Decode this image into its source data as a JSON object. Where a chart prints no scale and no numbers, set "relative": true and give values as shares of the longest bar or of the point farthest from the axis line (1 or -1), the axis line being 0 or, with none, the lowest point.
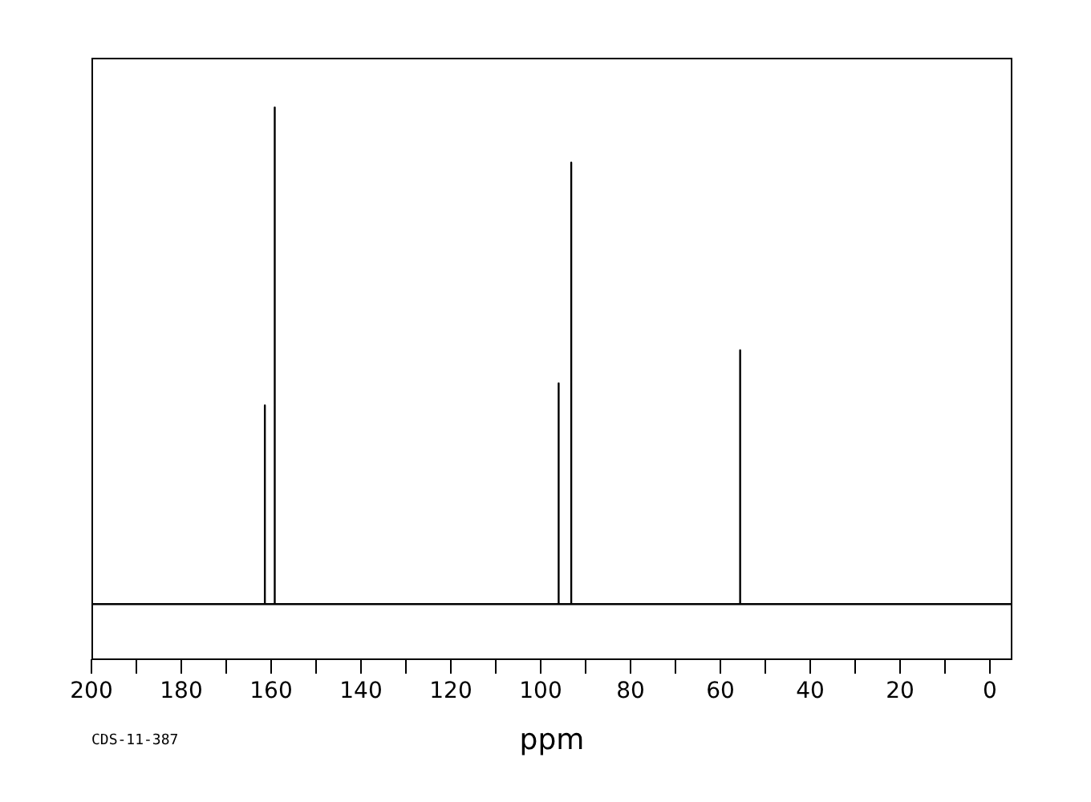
{
  "chart_data": {
    "type": "line",
    "xlabel": "ppm",
    "annotations": [
      "CDS-11-387"
    ],
    "relative": true,
    "grid": false,
    "legend": false,
    "marker": "none",
    "line_style": "solid",
    "xlim": [
      200,
      -5
    ],
    "xticks": [
      200,
      {
        "value": 190,
        "label": null
      },
      180,
      {
        "value": 170,
        "label": null
      },
      160,
      {
        "value": 150,
        "label": null
      },
      140,
      {
        "value": 130,
        "label": null
      },
      120,
      {
        "value": 110,
        "label": null
      },
      100,
      {
        "value": 90,
        "label": null
      },
      80,
      {
        "value": 70,
        "label": null
      },
      60,
      {
        "value": 50,
        "label": null
      },
      40,
      {
        "value": 30,
        "label": null
      },
      20,
      {
        "value": 10,
        "label": null
      },
      0
    ],
    "series": [
      {
        "color": "#000000",
        "x": [
          200,
          161.4,
          161.4,
          161.4,
          159.2,
          159.2,
          159.2,
          96.0,
          96.0,
          96.0,
          93.2,
          93.2,
          93.2,
          55.6,
          55.6,
          55.6,
          -5
        ],
        "values": [
          0.1,
          0.1,
          0.46,
          0.1,
          0.1,
          1,
          0.1,
          0.1,
          0.5,
          0.1,
          0.1,
          0.9,
          0.1,
          0.1,
          0.56,
          0.1,
          0.1
        ]
      }
    ]
  }
}
